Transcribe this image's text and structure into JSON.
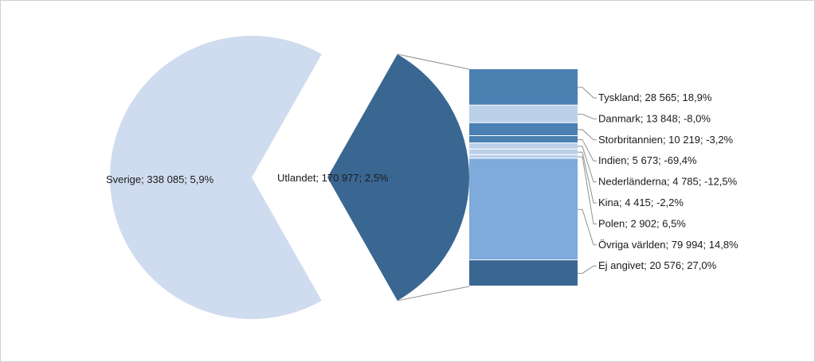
{
  "chart_data": {
    "type": "bar-of-pie",
    "colors": {
      "Sverige": "#cfdcef",
      "Utlandet": "#3a6791",
      "Tyskland": "#4b80b2",
      "Danmark": "#bdd0ea",
      "Storbritannien": "#4b80b2",
      "Indien": "#4b80b2",
      "Nederländerna": "#bdd0ea",
      "Kina": "#bdd0ea",
      "Polen": "#bdd0ea",
      "Övriga världen": "#7eabdb",
      "Ej angivet": "#3a6791",
      "connector": "#909090"
    },
    "pie": [
      {
        "name": "Sverige",
        "value": 338085,
        "change": "5,9%",
        "label": "Sverige; 338 085; 5,9%"
      },
      {
        "name": "Utlandet",
        "value": 170977,
        "change": "2,5%",
        "label": "Utlandet; 170 977; 2,5%"
      }
    ],
    "bar": [
      {
        "name": "Tyskland",
        "value": 28565,
        "change": "18,9%",
        "label": "Tyskland; 28 565; 18,9%"
      },
      {
        "name": "Danmark",
        "value": 13848,
        "change": "-8,0%",
        "label": "Danmark; 13 848; -8,0%"
      },
      {
        "name": "Storbritannien",
        "value": 10219,
        "change": "-3,2%",
        "label": "Storbritannien; 10 219; -3,2%"
      },
      {
        "name": "Indien",
        "value": 5673,
        "change": "-69,4%",
        "label": "Indien; 5 673; -69,4%"
      },
      {
        "name": "Nederländerna",
        "value": 4785,
        "change": "-12,5%",
        "label": "Nederländerna; 4 785; -12,5%"
      },
      {
        "name": "Kina",
        "value": 4415,
        "change": "-2,2%",
        "label": "Kina; 4 415; -2,2%"
      },
      {
        "name": "Polen",
        "value": 2902,
        "change": "6,5%",
        "label": "Polen; 2 902; 6,5%"
      },
      {
        "name": "Övriga världen",
        "value": 79994,
        "change": "14,8%",
        "label": "Övriga världen; 79 994; 14,8%"
      },
      {
        "name": "Ej angivet",
        "value": 20576,
        "change": "27,0%",
        "label": "Ej angivet; 20 576; 27,0%"
      }
    ]
  }
}
